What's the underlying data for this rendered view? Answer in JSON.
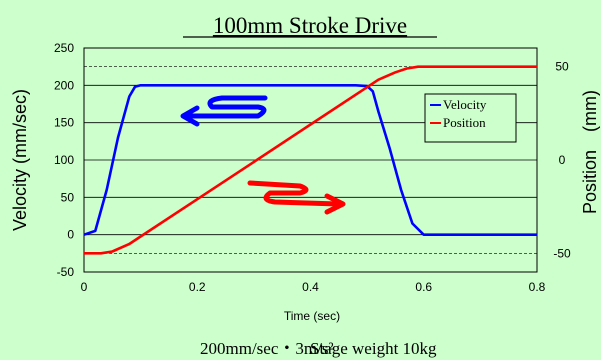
{
  "chart_data": {
    "type": "line",
    "title": "100mm Stroke Drive",
    "xlabel": "Time (sec)",
    "ylabel_left": "Velocity (mm/sec)",
    "ylabel_right": "Position　(mm)",
    "xlim": [
      0,
      0.8
    ],
    "ylim_left": [
      -50,
      250
    ],
    "ylim_right": [
      -60,
      60
    ],
    "x_ticks": [
      "0",
      "0.2",
      "0.4",
      "0.6",
      "0.8"
    ],
    "y_left_ticks": [
      "-50",
      "0",
      "50",
      "100",
      "150",
      "200",
      "250"
    ],
    "y_right_ticks": [
      "-50",
      "0",
      "50"
    ],
    "grid": true,
    "legend_position": "right-inside",
    "series": [
      {
        "name": "Velocity",
        "axis": "left",
        "color": "#0000ff",
        "x": [
          0,
          0.02,
          0.04,
          0.06,
          0.08,
          0.09,
          0.1,
          0.12,
          0.2,
          0.3,
          0.4,
          0.48,
          0.5,
          0.51,
          0.52,
          0.54,
          0.56,
          0.58,
          0.6,
          0.7,
          0.8
        ],
        "values": [
          0,
          5,
          60,
          130,
          185,
          198,
          200,
          200,
          200,
          200,
          200,
          200,
          199,
          192,
          165,
          115,
          60,
          15,
          0,
          0,
          0
        ]
      },
      {
        "name": "Position",
        "axis": "right",
        "color": "#ff0000",
        "x": [
          0,
          0.03,
          0.05,
          0.08,
          0.1,
          0.2,
          0.3,
          0.4,
          0.5,
          0.52,
          0.55,
          0.57,
          0.59,
          0.6,
          0.7,
          0.8
        ],
        "values": [
          -50,
          -50,
          -49,
          -45,
          -41,
          -21,
          -1,
          19,
          39,
          43,
          47,
          49,
          50,
          50,
          50,
          50
        ]
      }
    ],
    "reference_lines_right": [
      50,
      -50
    ]
  },
  "caption_speed": "200mm/sec・3m/s²",
  "caption_weight": "Stage weight 10kg"
}
